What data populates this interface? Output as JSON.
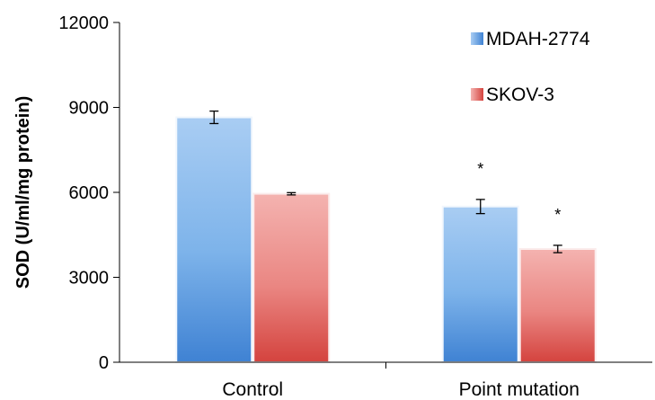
{
  "chart_data": {
    "type": "bar",
    "ylabel": "SOD (U/ml/mg protein)",
    "xlabel": "",
    "ylim": [
      0,
      12000
    ],
    "yticks": [
      0,
      3000,
      6000,
      9000,
      12000
    ],
    "yticks_text": [
      "0",
      "3000",
      "6000",
      "9000",
      "12000"
    ],
    "categories": [
      "Control",
      "Point mutation"
    ],
    "series": [
      {
        "name": "MDAH-2774",
        "values": [
          8650,
          5500
        ],
        "errors": [
          220,
          250
        ],
        "color": "#5b9bd5",
        "annotations": [
          "",
          "*"
        ]
      },
      {
        "name": "SKOV-3",
        "values": [
          5950,
          4000
        ],
        "errors": [
          40,
          130
        ],
        "color": "#e0605c",
        "annotations": [
          "",
          "*"
        ]
      }
    ],
    "legend": "top-right",
    "grid": false
  }
}
